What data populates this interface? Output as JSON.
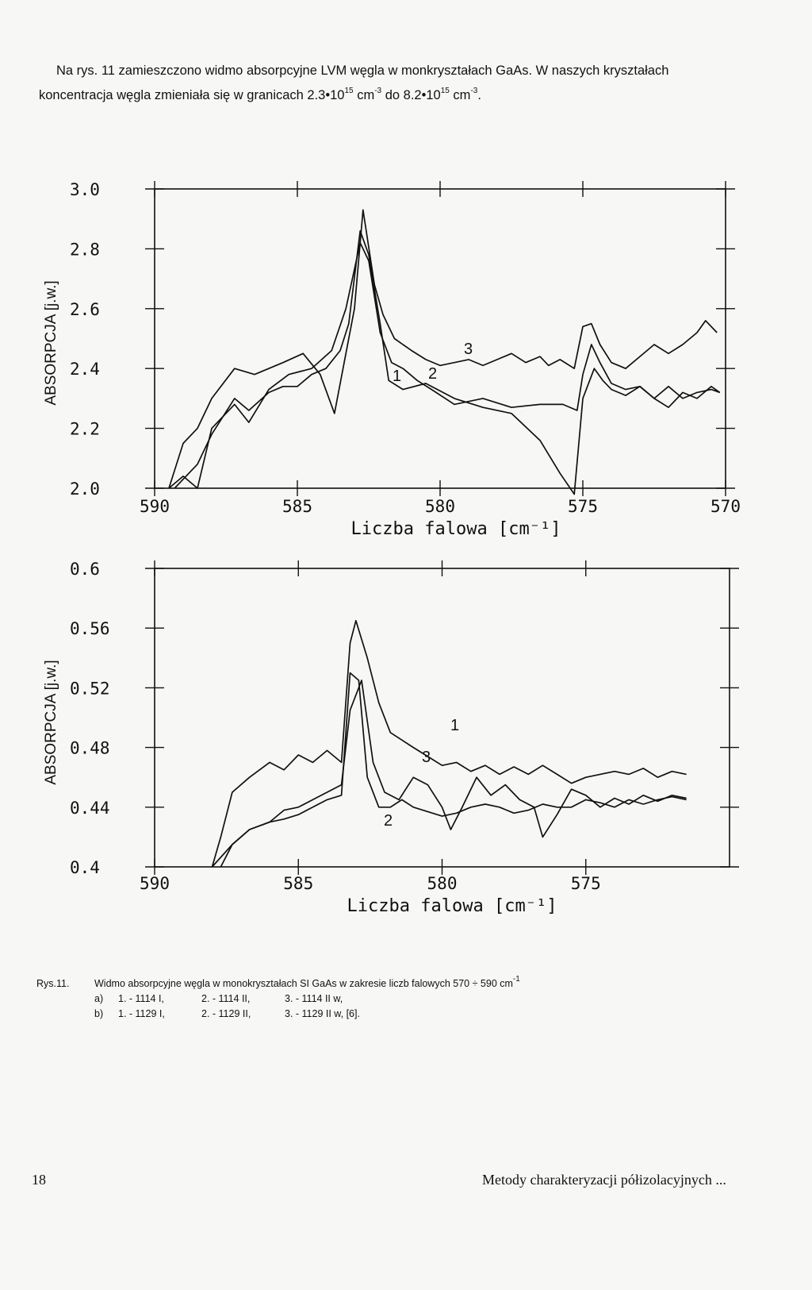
{
  "intro": {
    "line1": "Na rys. 11 zamieszczono widmo absorpcyjne LVM węgla w monkryształach GaAs. W naszych kryształach",
    "line2_a": "koncentracja węgla zmieniała się w granicach 2.3•10",
    "sup1": "15",
    "line2_b": " cm",
    "sup2": "-3",
    "line2_c": " do 8.2•10",
    "sup3": "15",
    "line2_d": " cm",
    "sup4": "-3",
    "line2_e": "."
  },
  "chart_data": [
    {
      "type": "line",
      "panel": "a",
      "title": "",
      "xlabel": "Liczba falowa [cm⁻¹]",
      "ylabel": "ABSORPCJA [j.w.]",
      "xlim": [
        590,
        570
      ],
      "ylim": [
        2.0,
        3.0
      ],
      "x_ticks": [
        590,
        585,
        580,
        575,
        570
      ],
      "x_tick_labels": [
        "590",
        "585",
        "580",
        "575",
        "570"
      ],
      "y_ticks": [
        2.0,
        2.2,
        2.4,
        2.6,
        2.8,
        3.0
      ],
      "y_tick_labels": [
        "2.0",
        "2.2",
        "2.4",
        "2.6",
        "2.8",
        "3.0"
      ],
      "series": [
        {
          "name": "1",
          "x": [
            589.3,
            588.5,
            588.0,
            587.2,
            586.7,
            586.0,
            585.5,
            585.0,
            584.5,
            584.0,
            583.5,
            583.2,
            582.8,
            582.5,
            582.1,
            581.8,
            581.3,
            580.5,
            579.5,
            578.5,
            577.5,
            576.5,
            575.8,
            575.3,
            575.0,
            574.6,
            574.3,
            574.0,
            573.5,
            573.0,
            572.5,
            572.0,
            571.5,
            571.0,
            570.5,
            570.2
          ],
          "y": [
            2.0,
            2.08,
            2.18,
            2.3,
            2.26,
            2.32,
            2.34,
            2.34,
            2.38,
            2.4,
            2.46,
            2.55,
            2.86,
            2.78,
            2.55,
            2.36,
            2.33,
            2.35,
            2.3,
            2.27,
            2.25,
            2.16,
            2.05,
            1.98,
            2.3,
            2.4,
            2.36,
            2.33,
            2.31,
            2.34,
            2.3,
            2.27,
            2.32,
            2.3,
            2.34,
            2.32
          ]
        },
        {
          "name": "2",
          "x": [
            589.5,
            589.0,
            588.5,
            588.0,
            587.2,
            586.7,
            586.0,
            585.3,
            584.5,
            583.8,
            583.3,
            582.8,
            582.5,
            582.1,
            581.7,
            581.3,
            580.8,
            580.3,
            579.5,
            578.5,
            577.5,
            576.5,
            575.7,
            575.2,
            575.0,
            574.7,
            574.4,
            574.0,
            573.5,
            573.0,
            572.5,
            572.0,
            571.5,
            571.0,
            570.5,
            570.2
          ],
          "y": [
            2.0,
            2.04,
            2.0,
            2.2,
            2.28,
            2.22,
            2.33,
            2.38,
            2.4,
            2.46,
            2.6,
            2.82,
            2.76,
            2.52,
            2.42,
            2.4,
            2.36,
            2.33,
            2.28,
            2.3,
            2.27,
            2.28,
            2.28,
            2.26,
            2.38,
            2.48,
            2.42,
            2.35,
            2.33,
            2.34,
            2.3,
            2.34,
            2.3,
            2.32,
            2.33,
            2.32
          ]
        },
        {
          "name": "3",
          "x": [
            589.5,
            589.0,
            588.5,
            588.0,
            587.2,
            586.5,
            585.5,
            584.8,
            584.2,
            583.7,
            583.4,
            583.0,
            582.7,
            582.3,
            582.0,
            581.6,
            581.0,
            580.5,
            580.0,
            579.5,
            579.0,
            578.5,
            578.0,
            577.5,
            577.0,
            576.5,
            576.2,
            575.8,
            575.3,
            575.0,
            574.7,
            574.4,
            574.0,
            573.5,
            573.0,
            572.5,
            572.0,
            571.5,
            571.0,
            570.7,
            570.3
          ],
          "y": [
            2.0,
            2.15,
            2.2,
            2.3,
            2.4,
            2.38,
            2.42,
            2.45,
            2.38,
            2.25,
            2.4,
            2.6,
            2.93,
            2.68,
            2.58,
            2.5,
            2.46,
            2.43,
            2.41,
            2.42,
            2.43,
            2.41,
            2.43,
            2.45,
            2.42,
            2.44,
            2.41,
            2.43,
            2.4,
            2.54,
            2.55,
            2.48,
            2.42,
            2.4,
            2.44,
            2.48,
            2.45,
            2.48,
            2.52,
            2.56,
            2.52
          ]
        }
      ],
      "annotations": [
        "1",
        "2",
        "3"
      ]
    },
    {
      "type": "line",
      "panel": "b",
      "title": "",
      "xlabel": "Liczba falowa [cm⁻¹]",
      "ylabel": "ABSORPCJA [j.w.]",
      "xlim": [
        590,
        570
      ],
      "ylim": [
        0.4,
        0.6
      ],
      "x_ticks": [
        590,
        585,
        580,
        575
      ],
      "x_tick_labels": [
        "590",
        "585",
        "580",
        "575"
      ],
      "y_ticks": [
        0.4,
        0.44,
        0.48,
        0.52,
        0.56,
        0.6
      ],
      "y_tick_labels": [
        "0.4",
        "0.44",
        "0.48",
        "0.52",
        "0.56",
        "0.6"
      ],
      "series": [
        {
          "name": "1",
          "x": [
            588.0,
            587.7,
            587.3,
            586.7,
            586.0,
            585.5,
            585.0,
            584.5,
            584.0,
            583.5,
            583.2,
            583.0,
            582.6,
            582.2,
            581.8,
            581.4,
            581.0,
            580.5,
            580.0,
            579.5,
            579.0,
            578.5,
            578.0,
            577.5,
            577.0,
            576.5,
            576.0,
            575.5,
            575.0,
            574.5,
            574.0,
            573.5,
            573.0,
            572.5,
            572.0,
            571.5
          ],
          "y": [
            0.4,
            0.42,
            0.45,
            0.46,
            0.47,
            0.465,
            0.475,
            0.47,
            0.478,
            0.47,
            0.55,
            0.565,
            0.54,
            0.51,
            0.49,
            0.485,
            0.48,
            0.474,
            0.468,
            0.47,
            0.464,
            0.468,
            0.462,
            0.467,
            0.462,
            0.468,
            0.462,
            0.456,
            0.46,
            0.462,
            0.464,
            0.462,
            0.466,
            0.46,
            0.464,
            0.462
          ]
        },
        {
          "name": "2",
          "x": [
            588.0,
            587.3,
            586.7,
            586.0,
            585.5,
            585.0,
            584.5,
            584.0,
            583.5,
            583.2,
            582.9,
            582.6,
            582.2,
            581.8,
            581.4,
            581.0,
            580.5,
            580.0,
            579.5,
            579.0,
            578.5,
            578.0,
            577.5,
            577.0,
            576.5,
            576.0,
            575.5,
            575.0,
            574.5,
            574.0,
            573.5,
            573.0,
            572.5,
            572.0,
            571.5
          ],
          "y": [
            0.4,
            0.415,
            0.425,
            0.43,
            0.432,
            0.435,
            0.44,
            0.445,
            0.448,
            0.53,
            0.525,
            0.46,
            0.44,
            0.44,
            0.445,
            0.44,
            0.437,
            0.434,
            0.436,
            0.44,
            0.442,
            0.44,
            0.436,
            0.438,
            0.442,
            0.44,
            0.44,
            0.445,
            0.443,
            0.44,
            0.445,
            0.442,
            0.445,
            0.447,
            0.445
          ]
        },
        {
          "name": "3",
          "x": [
            587.7,
            587.3,
            586.7,
            586.0,
            585.5,
            585.0,
            584.5,
            584.0,
            583.5,
            583.2,
            582.8,
            582.4,
            582.0,
            581.5,
            581.0,
            580.5,
            580.0,
            579.7,
            579.3,
            578.8,
            578.3,
            577.8,
            577.3,
            576.8,
            576.5,
            576.0,
            575.5,
            575.0,
            574.5,
            574.0,
            573.5,
            573.0,
            572.5,
            572.0,
            571.5
          ],
          "y": [
            0.4,
            0.415,
            0.425,
            0.43,
            0.438,
            0.44,
            0.445,
            0.45,
            0.455,
            0.505,
            0.525,
            0.47,
            0.45,
            0.445,
            0.46,
            0.455,
            0.44,
            0.425,
            0.44,
            0.46,
            0.448,
            0.455,
            0.445,
            0.44,
            0.42,
            0.435,
            0.452,
            0.448,
            0.44,
            0.446,
            0.442,
            0.448,
            0.444,
            0.448,
            0.446
          ]
        }
      ],
      "annotations": [
        "1",
        "2",
        "3"
      ]
    }
  ],
  "caption": {
    "label": "Rys.11.",
    "text_a": "Widmo absorpcyjne węgla w monokryształach SI GaAs w zakresie liczb falowych 570 ÷ 590 cm",
    "text_sup": "-1",
    "row_a": {
      "key": "a)",
      "c1": "1. - 1114 I,",
      "c2": "2. - 1114 II,",
      "c3": "3. - 1114 II w,"
    },
    "row_b": {
      "key": "b)",
      "c1": "1. - 1129 I,",
      "c2": "2. - 1129 II,",
      "c3": "3. - 1129 II w, [6]."
    }
  },
  "footer": {
    "page_number": "18",
    "running_title": "Metody charakteryzacji półizolacyjnych ..."
  }
}
